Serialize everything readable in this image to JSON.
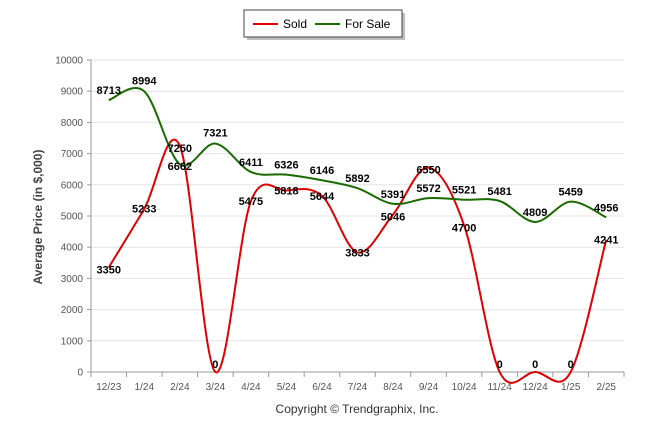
{
  "chart_data": {
    "type": "line",
    "categories": [
      "12/23",
      "1/24",
      "2/24",
      "3/24",
      "4/24",
      "5/24",
      "6/24",
      "7/24",
      "8/24",
      "9/24",
      "10/24",
      "11/24",
      "12/24",
      "1/25",
      "2/25"
    ],
    "series": [
      {
        "name": "Sold",
        "color": "#e00000",
        "values": [
          3350,
          5233,
          7250,
          0,
          5475,
          5818,
          5644,
          3833,
          5046,
          6550,
          4700,
          0,
          0,
          0,
          4241
        ]
      },
      {
        "name": "For Sale",
        "color": "#1a6b00",
        "values": [
          8713,
          8994,
          6662,
          7321,
          6411,
          6326,
          6146,
          5892,
          5391,
          5572,
          5521,
          5481,
          4809,
          5459,
          4956
        ]
      }
    ],
    "ylabel": "Average Price (in $,000)",
    "xlabel": "",
    "ylim": [
      0,
      10000
    ],
    "yticks": [
      0,
      1000,
      2000,
      3000,
      4000,
      5000,
      6000,
      7000,
      8000,
      9000,
      10000
    ],
    "grid": true,
    "legend": "top-center"
  },
  "footer": {
    "copyright": "Copyright © Trendgraphix, Inc."
  }
}
